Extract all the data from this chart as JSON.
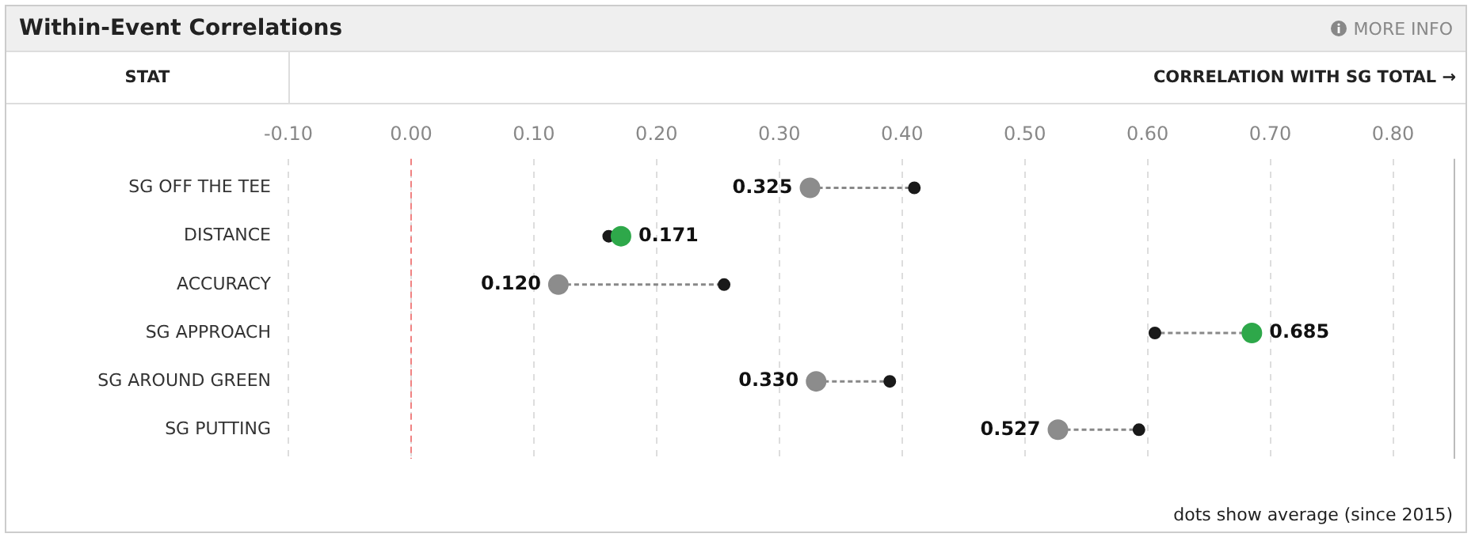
{
  "chart_data": {
    "type": "scatter",
    "title": "Within-Event Correlations",
    "xlabel": "CORRELATION WITH SG TOTAL →",
    "ylabel": "STAT",
    "orientation": "horizontal",
    "categories": [
      "SG OFF THE TEE",
      "DISTANCE",
      "ACCURACY",
      "SG APPROACH",
      "SG AROUND GREEN",
      "SG PUTTING"
    ],
    "series": [
      {
        "colors": [
          "#8c8c8c",
          "#2ea84a",
          "#8c8c8c",
          "#2ea84a",
          "#8c8c8c",
          "#8c8c8c"
        ],
        "values": [
          0.325,
          0.171,
          0.12,
          0.685,
          0.33,
          0.527
        ],
        "value_labels": [
          "0.325",
          "0.171",
          "0.120",
          "0.685",
          "0.330",
          "0.527"
        ]
      },
      {
        "color": "#1a1a1a",
        "values": [
          0.41,
          0.161,
          0.255,
          0.606,
          0.39,
          0.593
        ]
      }
    ],
    "xlim": [
      -0.1,
      0.85
    ],
    "xticks": [
      {
        "value": -0.1,
        "label": "-0.10"
      },
      {
        "value": 0,
        "label": "0.00"
      },
      {
        "value": 0.1,
        "label": "0.10"
      },
      {
        "value": 0.2,
        "label": "0.20"
      },
      {
        "value": 0.3,
        "label": "0.30"
      },
      {
        "value": 0.4,
        "label": "0.40"
      },
      {
        "value": 0.5,
        "label": "0.50"
      },
      {
        "value": 0.6,
        "label": "0.60"
      },
      {
        "value": 0.7,
        "label": "0.70"
      },
      {
        "value": 0.8,
        "label": "0.80"
      }
    ],
    "grid": "x",
    "marker": "circle",
    "ref_lines": [
      {
        "axis": "x",
        "value": 0,
        "color": "#f08080",
        "line_style": "dashed"
      }
    ],
    "annotations": [
      "MORE INFO",
      "dots show average (since 2015)"
    ]
  }
}
